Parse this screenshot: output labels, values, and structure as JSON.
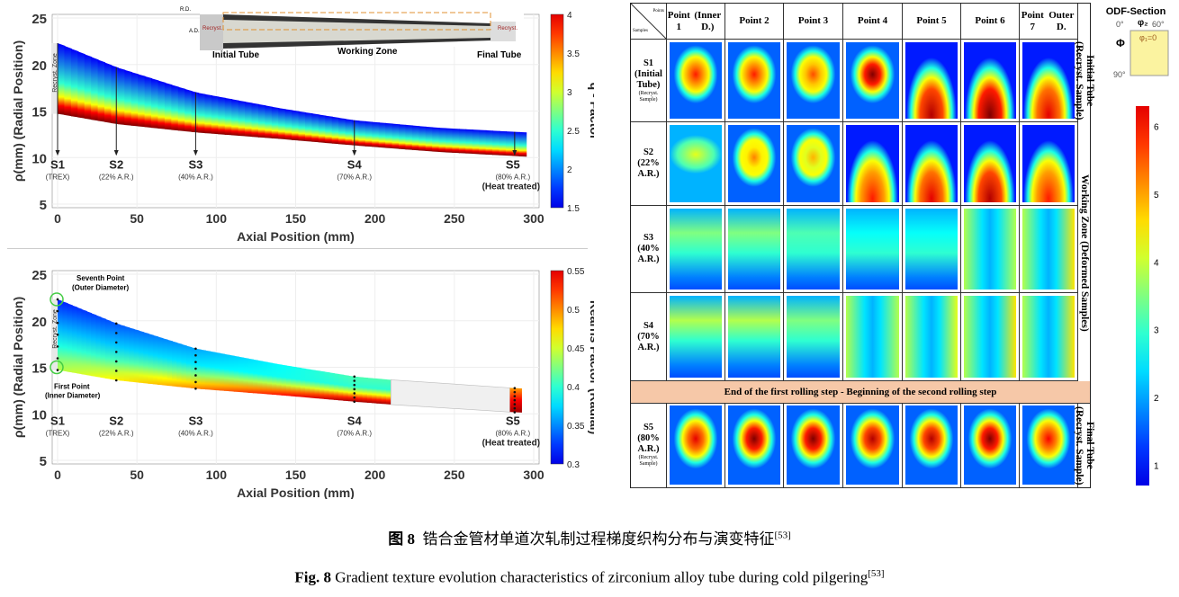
{
  "chart_data": [
    {
      "type": "heatmap",
      "title": "q - Factor",
      "xlabel": "Axial Position (mm)",
      "ylabel": "ρ(mm) (Radial Position)",
      "xlim": [
        0,
        300
      ],
      "ylim": [
        5,
        25
      ],
      "xticks": [
        0,
        50,
        100,
        150,
        200,
        250,
        300
      ],
      "yticks": [
        5,
        10,
        15,
        20,
        25
      ],
      "colorbar": {
        "label": "q - Factor",
        "range": [
          1.5,
          4
        ],
        "ticks": [
          1.5,
          2,
          2.5,
          3,
          3.5,
          4
        ]
      },
      "outer_radius": {
        "x": [
          0,
          37,
          87,
          140,
          187,
          240,
          295
        ],
        "y": [
          22.3,
          19.7,
          17.0,
          15.3,
          14.0,
          13.2,
          12.7
        ]
      },
      "inner_radius": {
        "x": [
          0,
          37,
          87,
          140,
          187,
          240,
          295
        ],
        "y": [
          14.7,
          13.6,
          12.7,
          12.0,
          11.3,
          10.6,
          10.1
        ]
      },
      "samples": [
        {
          "name": "S1",
          "x": 0,
          "note": "(TREX)"
        },
        {
          "name": "S2",
          "x": 37,
          "note": "(22% A.R.)"
        },
        {
          "name": "S3",
          "x": 87,
          "note": "(40% A.R.)"
        },
        {
          "name": "S4",
          "x": 187,
          "note": "(70% A.R.)"
        },
        {
          "name": "S5",
          "x": 288,
          "note": "(80% A.R.)",
          "note2": "(Heat treated)"
        }
      ],
      "annotations": {
        "recryst_zone": "Recryst. Zone",
        "inset": {
          "rd": "R.D.",
          "ad": "A.D.",
          "recryst_left": "Recryst. Zone",
          "recryst_right": "Recryst. Zone",
          "working_zone": "Working Zone",
          "initial": "Initial Tube",
          "final": "Final Tube"
        }
      }
    },
    {
      "type": "heatmap",
      "title": "Kearns Factor (Radial)",
      "xlabel": "Axial Position (mm)",
      "ylabel": "ρ(mm) (Radial Position)",
      "xlim": [
        0,
        300
      ],
      "ylim": [
        5,
        25
      ],
      "xticks": [
        0,
        50,
        100,
        150,
        200,
        250,
        300
      ],
      "yticks": [
        5,
        10,
        15,
        20,
        25
      ],
      "colorbar": {
        "label": "Kearns Factor (Radial)",
        "range": [
          0.3,
          0.55
        ],
        "ticks": [
          0.3,
          0.35,
          0.4,
          0.45,
          0.5,
          0.55
        ]
      },
      "samples": [
        {
          "name": "S1",
          "x": 0,
          "note": "(TREX)"
        },
        {
          "name": "S2",
          "x": 37,
          "note": "(22% A.R.)"
        },
        {
          "name": "S3",
          "x": 87,
          "note": "(40% A.R.)"
        },
        {
          "name": "S4",
          "x": 187,
          "note": "(70% A.R.)"
        },
        {
          "name": "S5",
          "x": 288,
          "note": "(80% A.R.)",
          "note2": "(Heat treated)"
        }
      ],
      "annotations": {
        "seventh": "Seventh Point",
        "seventh2": "(Outer Diameter)",
        "first": "First Point",
        "first2": "(Inner Diameter)",
        "recryst_zone": "Recryst. Zone"
      }
    }
  ],
  "odf": {
    "corner_top": "Points",
    "corner_bottom": "Samples",
    "columns": [
      [
        "Point 1",
        "(Inner D.)"
      ],
      [
        "Point 2",
        ""
      ],
      [
        "Point 3",
        ""
      ],
      [
        "Point 4",
        ""
      ],
      [
        "Point 5",
        ""
      ],
      [
        "Point 6",
        ""
      ],
      [
        "Point 7",
        "Outer D."
      ]
    ],
    "rows": [
      {
        "label": [
          "S1",
          "(Initial",
          "Tube)"
        ],
        "sub": "(Recryst. Sample)"
      },
      {
        "label": [
          "S2",
          "(22%",
          "A.R.)"
        ],
        "sub": ""
      },
      {
        "label": [
          "S3",
          "(40%",
          "A.R.)"
        ],
        "sub": ""
      },
      {
        "label": [
          "S4",
          "(70%",
          "A.R.)"
        ],
        "sub": ""
      },
      {
        "label": [
          "S5",
          "(80%",
          "A.R.)"
        ],
        "sub": "(Recryst. Sample)"
      }
    ],
    "side_labels": [
      "Initial Tube (Recryst. Sample)",
      "Working Zone (Deformed Samples)",
      "Final Tube (Recryst. Sample)"
    ],
    "banner": "End of the first rolling step - Beginning of the second rolling step",
    "section": {
      "title": "ODF-Section",
      "phi2_0": "0°",
      "phi2": "φ₂",
      "phi2_60": "60°",
      "Phi": "Φ",
      "phi1": "φ₁=0",
      "Phi_90": "90°"
    },
    "colorbar_ticks": [
      1,
      2,
      3,
      4,
      5,
      6
    ]
  },
  "caption": {
    "cn_prefix": "图 8",
    "cn_text": "锆合金管材单道次轧制过程梯度织构分布与演变特征",
    "cn_ref": "[53]",
    "en_prefix": "Fig. 8",
    "en_text": "Gradient texture evolution characteristics of zirconium alloy tube during cold pilgering",
    "en_ref": "[53]"
  }
}
